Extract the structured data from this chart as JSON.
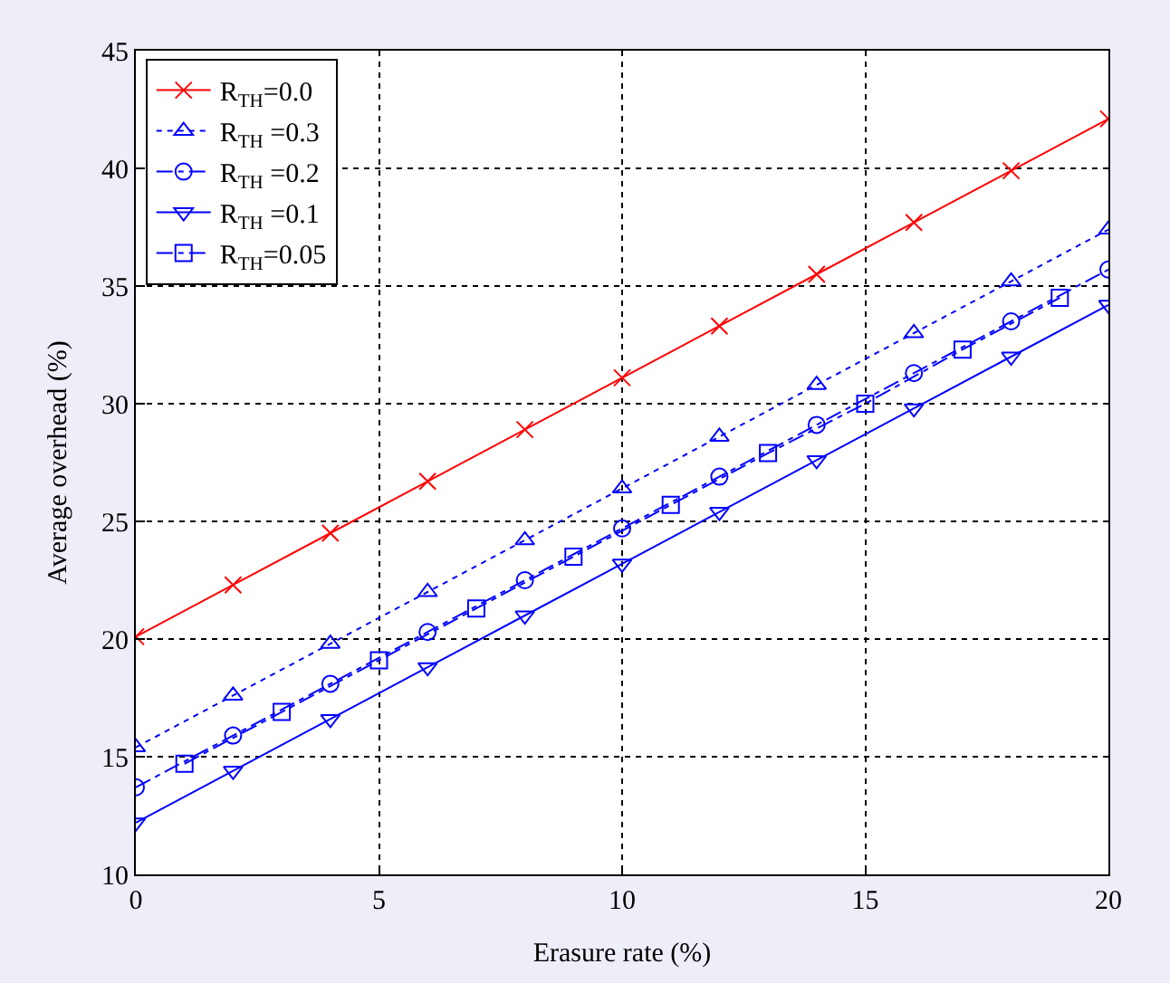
{
  "chart_data": {
    "type": "line",
    "xlabel": "Erasure rate (%)",
    "ylabel": "Average overhead (%)",
    "xlim": [
      0,
      20
    ],
    "xticks": [
      0,
      5,
      10,
      15,
      20
    ],
    "ylim": [
      10,
      45
    ],
    "yticks": [
      10,
      15,
      20,
      25,
      30,
      35,
      40,
      45
    ],
    "grid": true,
    "legend": "top left",
    "series": [
      {
        "name": "R$_{TH}$=0.0",
        "color": "#ff0000",
        "marker": "cross",
        "line_style": "solid",
        "x": [
          0,
          2,
          4,
          6,
          8,
          10,
          12,
          14,
          16,
          18,
          20
        ],
        "values": [
          20.1,
          22.3,
          24.5,
          26.7,
          28.9,
          31.1,
          33.3,
          35.5,
          37.7,
          39.9,
          42.1
        ]
      },
      {
        "name": "R$_{TH}$ =0.3",
        "color": "#0000ff",
        "marker": "triangle",
        "line_style": "dotted",
        "x": [
          0,
          2,
          4,
          6,
          8,
          10,
          12,
          14,
          16,
          18,
          20
        ],
        "values": [
          15.4,
          17.6,
          19.8,
          22.0,
          24.2,
          26.4,
          28.6,
          30.8,
          33.0,
          35.2,
          37.4
        ]
      },
      {
        "name": "R$_{TH}$ =0.2",
        "color": "#0000ff",
        "marker": "circle",
        "line_style": "dashed",
        "x": [
          0,
          2,
          4,
          6,
          8,
          10,
          12,
          14,
          16,
          18,
          20
        ],
        "values": [
          13.7,
          15.9,
          18.1,
          20.3,
          22.5,
          24.7,
          26.9,
          29.1,
          31.3,
          33.5,
          35.7
        ]
      },
      {
        "name": "R$_{TH}$ =0.1",
        "color": "#0000ff",
        "marker": "triangle-down",
        "line_style": "solid",
        "x": [
          0,
          2,
          4,
          6,
          8,
          10,
          12,
          14,
          16,
          18,
          20
        ],
        "values": [
          12.2,
          14.4,
          16.6,
          18.8,
          21.0,
          23.2,
          25.4,
          27.6,
          29.8,
          32.0,
          34.2
        ]
      },
      {
        "name": "R$_{TH}$=0.05",
        "color": "#0000ff",
        "marker": "square",
        "line_style": "dashed",
        "x": [
          1,
          3,
          5,
          7,
          9,
          11,
          13,
          15,
          17,
          19
        ],
        "values": [
          14.7,
          16.9,
          19.1,
          21.3,
          23.5,
          25.7,
          27.9,
          30.0,
          32.3,
          34.5
        ]
      }
    ]
  }
}
